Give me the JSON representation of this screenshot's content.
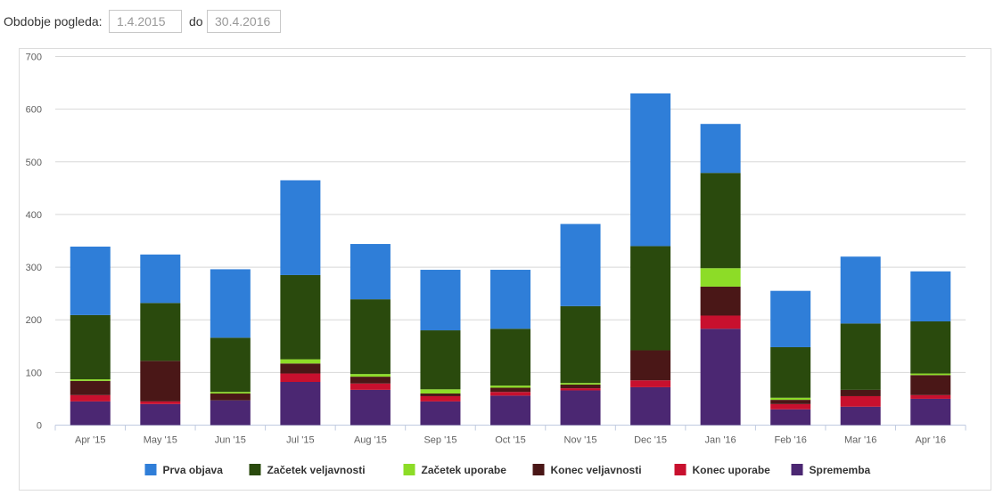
{
  "filter": {
    "label": "Obdobje pogleda:",
    "from_value": "1.4.2015",
    "to_label": "do",
    "to_value": "30.4.2016"
  },
  "chart_data": {
    "type": "bar",
    "stacked": true,
    "categories": [
      "Apr '15",
      "May '15",
      "Jun '15",
      "Jul '15",
      "Aug '15",
      "Sep '15",
      "Oct '15",
      "Nov '15",
      "Dec '15",
      "Jan '16",
      "Feb '16",
      "Mar '16",
      "Apr '16"
    ],
    "ylim": [
      0,
      700
    ],
    "yticks": [
      0,
      100,
      200,
      300,
      400,
      500,
      600,
      700
    ],
    "grid": true,
    "legend_position": "bottom-center",
    "series": [
      {
        "name": "Sprememba",
        "color": "#4b2772",
        "values": [
          45,
          40,
          47,
          82,
          67,
          45,
          56,
          66,
          72,
          183,
          30,
          35,
          50
        ]
      },
      {
        "name": "Konec uporabe",
        "color": "#c8102e",
        "values": [
          12,
          5,
          0,
          16,
          12,
          10,
          7,
          4,
          13,
          25,
          10,
          20,
          7
        ]
      },
      {
        "name": "Konec veljavnosti",
        "color": "#4a1717",
        "values": [
          27,
          77,
          13,
          19,
          13,
          5,
          8,
          7,
          57,
          55,
          8,
          12,
          38
        ]
      },
      {
        "name": "Začetek uporabe",
        "color": "#8ddc27",
        "values": [
          3,
          0,
          3,
          8,
          5,
          8,
          4,
          3,
          0,
          35,
          4,
          0,
          3
        ]
      },
      {
        "name": "Začetek veljavnosti",
        "color": "#2a4a0d",
        "values": [
          122,
          110,
          103,
          160,
          142,
          112,
          108,
          146,
          198,
          181,
          96,
          126,
          99
        ]
      },
      {
        "name": "Prva objava",
        "color": "#2f7ed8",
        "values": [
          130,
          92,
          130,
          180,
          105,
          115,
          112,
          156,
          290,
          93,
          107,
          127,
          95
        ]
      }
    ],
    "legend_order": [
      "Prva objava",
      "Začetek veljavnosti",
      "Začetek uporabe",
      "Konec veljavnosti",
      "Konec uporabe",
      "Sprememba"
    ]
  }
}
